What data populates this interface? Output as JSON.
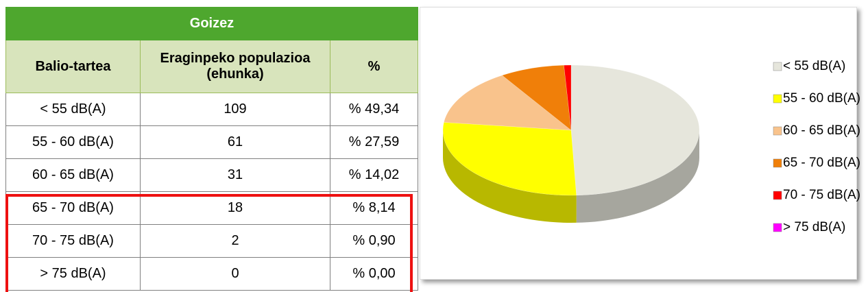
{
  "table": {
    "title": "Goizez",
    "headers": [
      "Balio-tartea",
      "Eraginpeko populazioa (ehunka)",
      "%"
    ],
    "rows": [
      [
        "< 55 dB(A)",
        "109",
        "% 49,34"
      ],
      [
        "55 - 60 dB(A)",
        "61",
        "% 27,59"
      ],
      [
        "60 - 65 dB(A)",
        "31",
        "% 14,02"
      ],
      [
        "65 - 70 dB(A)",
        "18",
        "% 8,14"
      ],
      [
        "70 - 75 dB(A)",
        "2",
        "% 0,90"
      ],
      [
        "> 75 dB(A)",
        "0",
        "% 0,00"
      ]
    ]
  },
  "chart_data": {
    "type": "pie",
    "categories": [
      "< 55 dB(A)",
      "55 - 60 dB(A)",
      "60 - 65 dB(A)",
      "65 - 70 dB(A)",
      "70 - 75 dB(A)",
      "> 75 dB(A)"
    ],
    "values": [
      49.34,
      27.59,
      14.02,
      8.14,
      0.9,
      0.0
    ],
    "colors": [
      "#e6e6dc",
      "#ffff00",
      "#f9c38c",
      "#f07f09",
      "#ff0000",
      "#ff00ff"
    ],
    "legend": "right"
  }
}
